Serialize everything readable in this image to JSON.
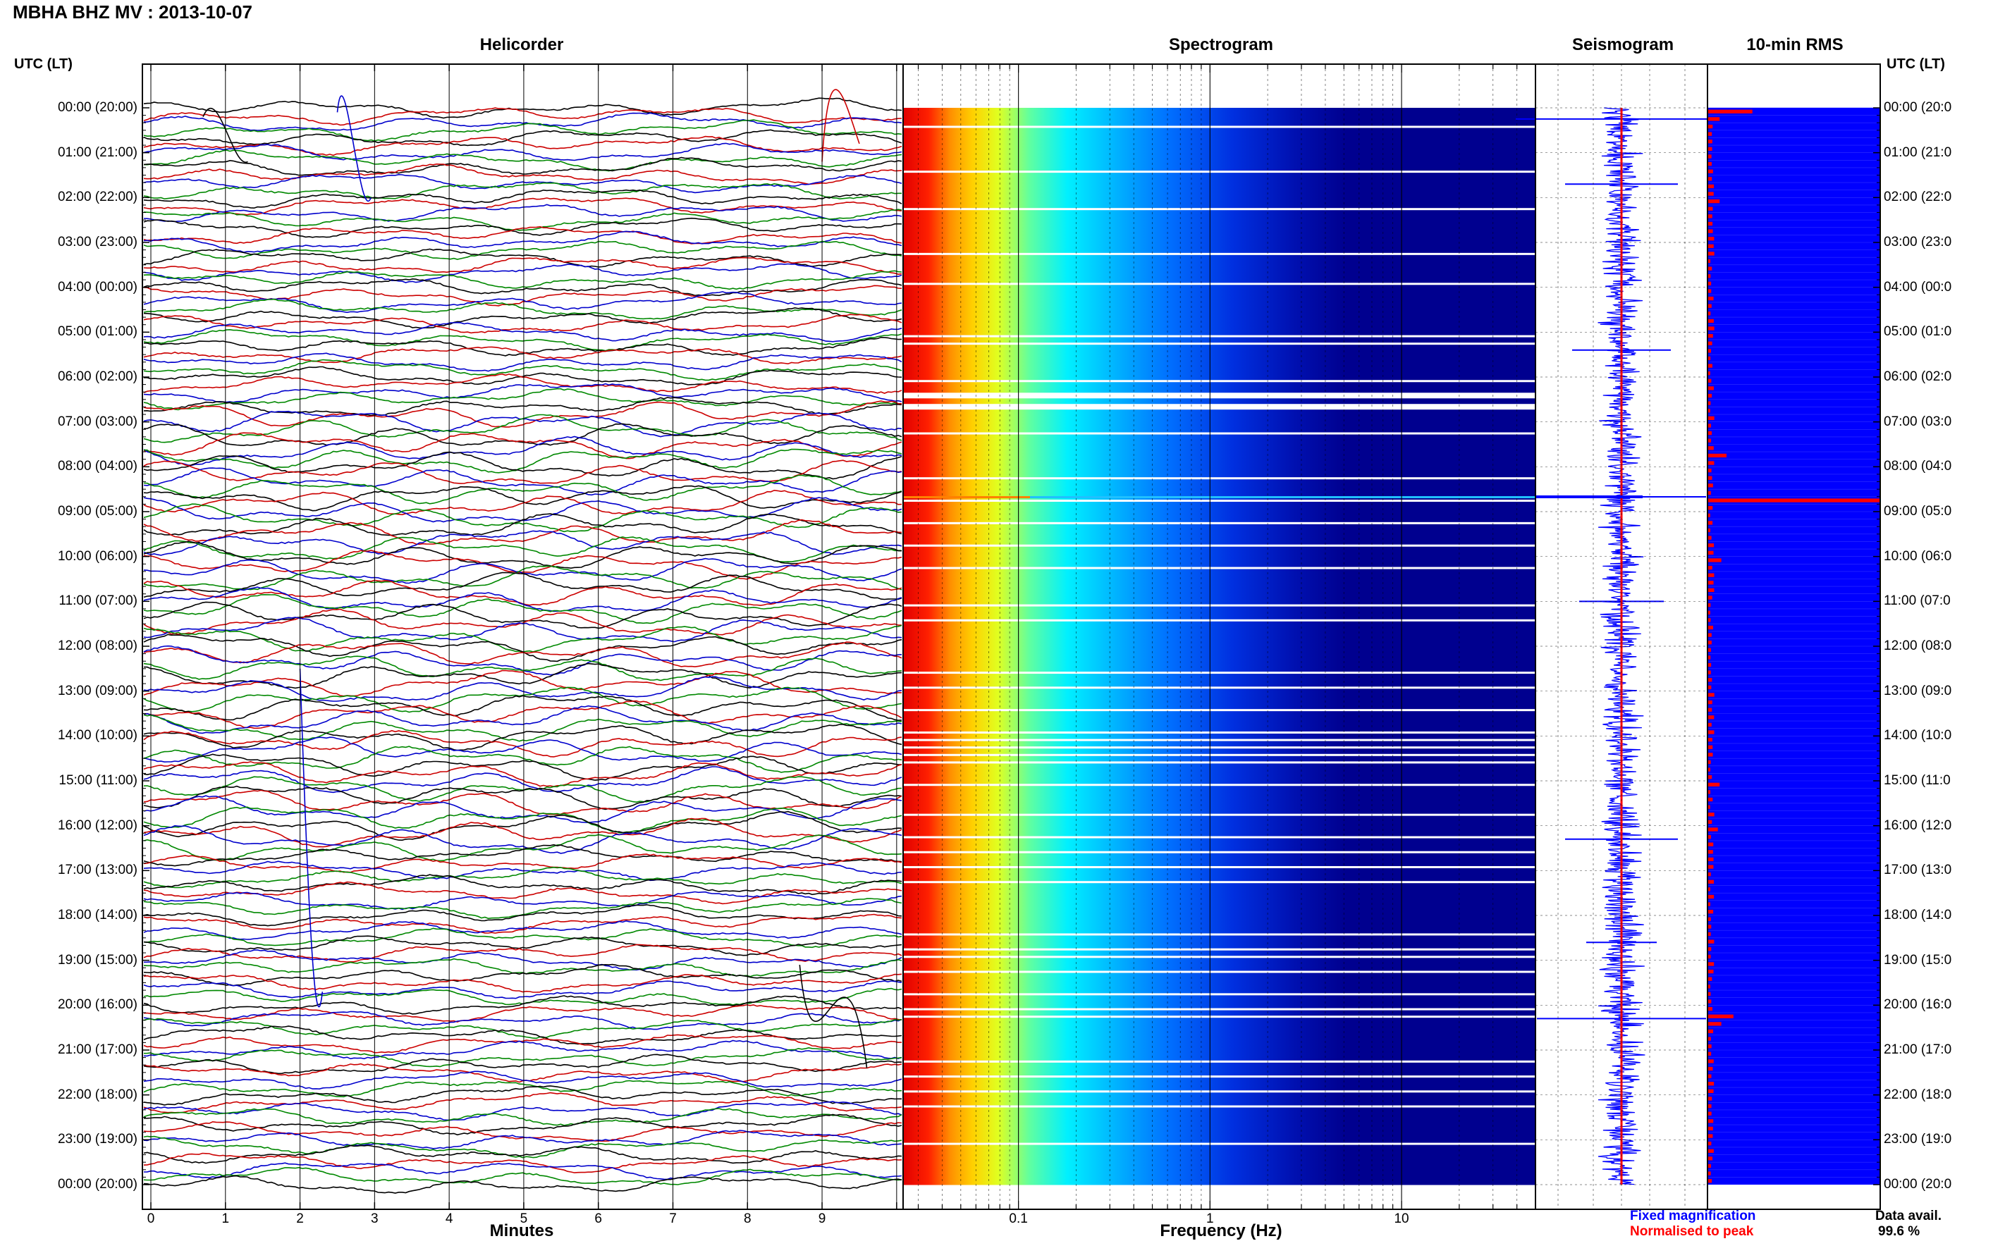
{
  "header": {
    "title": "MBHA BHZ MV : 2013-10-07"
  },
  "panels": {
    "helicorder": "Helicorder",
    "spectrogram": "Spectrogram",
    "seismogram": "Seismogram",
    "rms": "10-min RMS"
  },
  "axis": {
    "left_label": "UTC (LT)",
    "right_label": "UTC (LT)",
    "helicorder_xlabel": "Minutes",
    "spectrogram_xlabel": "Frequency (Hz)"
  },
  "time_ticks": [
    "00:00 (20:00)",
    "01:00 (21:00)",
    "02:00 (22:00)",
    "03:00 (23:00)",
    "04:00 (00:00)",
    "05:00 (01:00)",
    "06:00 (02:00)",
    "07:00 (03:00)",
    "08:00 (04:00)",
    "09:00 (05:00)",
    "10:00 (06:00)",
    "11:00 (07:00)",
    "12:00 (08:00)",
    "13:00 (09:00)",
    "14:00 (10:00)",
    "15:00 (11:00)",
    "16:00 (12:00)",
    "17:00 (13:00)",
    "18:00 (14:00)",
    "19:00 (15:00)",
    "20:00 (16:00)",
    "21:00 (17:00)",
    "22:00 (18:00)",
    "23:00 (19:00)",
    "00:00 (20:00)"
  ],
  "time_ticks_right": [
    "00:00 (20:0",
    "01:00 (21:0",
    "02:00 (22:0",
    "03:00 (23:0",
    "04:00 (00:0",
    "05:00 (01:0",
    "06:00 (02:0",
    "07:00 (03:0",
    "08:00 (04:0",
    "09:00 (05:0",
    "10:00 (06:0",
    "11:00 (07:0",
    "12:00 (08:0",
    "13:00 (09:0",
    "14:00 (10:0",
    "15:00 (11:0",
    "16:00 (12:0",
    "17:00 (13:0",
    "18:00 (14:0",
    "19:00 (15:0",
    "20:00 (16:0",
    "21:00 (17:0",
    "22:00 (18:0",
    "23:00 (19:0",
    "00:00 (20:0"
  ],
  "minute_ticks": [
    "0",
    "1",
    "2",
    "3",
    "4",
    "5",
    "6",
    "7",
    "8",
    "9"
  ],
  "freq_ticks": [
    "0.1",
    "1",
    "10"
  ],
  "legend": {
    "fixed": "Fixed magnification",
    "normalised": "Normalised to peak",
    "fixed_color": "#0000ff",
    "normalised_color": "#ff0000"
  },
  "availability": {
    "label": "Data avail.",
    "value": "99.6 %"
  },
  "colors": {
    "trace_cycle": [
      "#000000",
      "#cc0000",
      "#0000cc",
      "#008800"
    ],
    "spectrogram_background": "#00008f",
    "rms_background": "#0000ff",
    "rms_bar": "#ff0000",
    "seismogram_trace": "#0000ff",
    "seismogram_peak": "#ff0000"
  },
  "chart_data": [
    {
      "type": "line",
      "title": "Helicorder",
      "xlabel": "Minutes",
      "ylabel": "UTC (LT)",
      "xlim": [
        0,
        10.2
      ],
      "rows_per_hour": 6,
      "notes": "Each row is a 10-minute trace of seismic ground velocity; colors cycle black, red, blue, green."
    },
    {
      "type": "heatmap",
      "title": "Spectrogram",
      "xlabel": "Frequency (Hz)",
      "x_scale": "log",
      "xlim": [
        0.025,
        50
      ],
      "colormap": "jet",
      "notes": "Energy concentrated below 0.1 Hz (red/yellow), decaying to background (dark blue) above ~3 Hz."
    },
    {
      "type": "line",
      "title": "Seismogram",
      "series": [
        {
          "name": "Fixed magnification"
        },
        {
          "name": "Normalised to peak"
        }
      ]
    },
    {
      "type": "bar",
      "title": "10-min RMS",
      "rows": 144,
      "peak_row_time": "08:40",
      "peak_value_fraction": 1.0,
      "notable_rows": [
        {
          "time": "00:00",
          "fraction": 0.26
        },
        {
          "time": "00:10",
          "fraction": 0.07
        },
        {
          "time": "02:00",
          "fraction": 0.07
        },
        {
          "time": "07:40",
          "fraction": 0.11
        },
        {
          "time": "08:40",
          "fraction": 1.0
        },
        {
          "time": "10:00",
          "fraction": 0.08
        },
        {
          "time": "15:00",
          "fraction": 0.07
        },
        {
          "time": "16:00",
          "fraction": 0.06
        },
        {
          "time": "20:10",
          "fraction": 0.15
        },
        {
          "time": "20:20",
          "fraction": 0.08
        }
      ]
    }
  ]
}
